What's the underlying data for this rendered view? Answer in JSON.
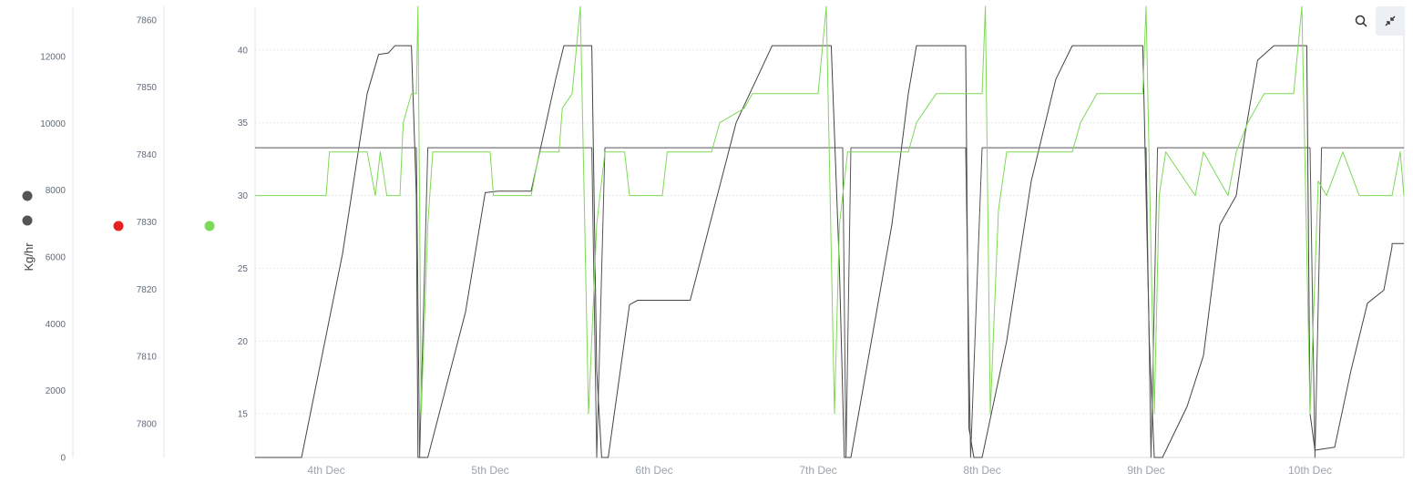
{
  "toolbar": {
    "zoom_icon": "search-icon",
    "collapse_icon": "minimize-icon"
  },
  "chart_data": {
    "type": "line",
    "x_categories": [
      "4th Dec",
      "5th Dec",
      "6th Dec",
      "7th Dec",
      "8th Dec",
      "9th Dec",
      "10th Dec"
    ],
    "axes": [
      {
        "id": "a1",
        "label": "Kg/hr",
        "range": [
          0,
          13500
        ],
        "ticks": [
          0,
          2000,
          4000,
          6000,
          8000,
          10000,
          12000
        ],
        "indicators": [
          {
            "color": "#555555"
          },
          {
            "color": "#555555"
          }
        ]
      },
      {
        "id": "a2",
        "label": "",
        "range": [
          7795,
          7862
        ],
        "ticks": [
          7800,
          7810,
          7820,
          7830,
          7840,
          7850,
          7860
        ],
        "indicators": [
          {
            "color": "#e82020"
          }
        ]
      },
      {
        "id": "a3",
        "label": "",
        "range": [
          12,
          43
        ],
        "ticks": [
          15,
          20,
          25,
          30,
          35,
          40
        ],
        "indicators": [
          {
            "color": "#7ed957"
          }
        ]
      }
    ],
    "grid": true,
    "series": [
      {
        "axis": "a3",
        "color": "#444444",
        "points": [
          [
            3.45,
            12
          ],
          [
            3.85,
            12
          ],
          [
            4.1,
            26
          ],
          [
            4.25,
            37
          ],
          [
            4.32,
            39.7
          ],
          [
            4.38,
            39.8
          ],
          [
            4.42,
            40.3
          ],
          [
            4.45,
            40.3
          ],
          [
            4.52,
            40.3
          ],
          [
            4.55,
            30
          ],
          [
            4.56,
            12
          ],
          [
            4.62,
            12
          ],
          [
            4.85,
            22
          ],
          [
            4.97,
            30.2
          ],
          [
            5.05,
            30.3
          ],
          [
            5.25,
            30.3
          ],
          [
            5.4,
            38
          ],
          [
            5.45,
            40.3
          ],
          [
            5.62,
            40.3
          ],
          [
            5.65,
            18
          ],
          [
            5.68,
            12
          ],
          [
            5.72,
            12
          ],
          [
            5.85,
            22.5
          ],
          [
            5.9,
            22.8
          ],
          [
            6.22,
            22.8
          ],
          [
            6.5,
            35
          ],
          [
            6.72,
            40.3
          ],
          [
            7.08,
            40.3
          ],
          [
            7.13,
            25
          ],
          [
            7.16,
            12
          ],
          [
            7.2,
            12
          ],
          [
            7.45,
            28
          ],
          [
            7.55,
            37
          ],
          [
            7.6,
            40.3
          ],
          [
            7.9,
            40.3
          ],
          [
            7.92,
            14
          ],
          [
            7.95,
            12
          ],
          [
            8,
            12
          ],
          [
            8.15,
            20
          ],
          [
            8.3,
            31
          ],
          [
            8.45,
            38
          ],
          [
            8.55,
            40.3
          ],
          [
            8.98,
            40.3
          ],
          [
            9.02,
            20
          ],
          [
            9.05,
            12
          ],
          [
            9.1,
            12
          ],
          [
            9.25,
            15.5
          ],
          [
            9.35,
            19
          ],
          [
            9.45,
            28
          ],
          [
            9.55,
            30
          ],
          [
            9.6,
            34
          ],
          [
            9.68,
            39.3
          ],
          [
            9.78,
            40.3
          ],
          [
            9.98,
            40.3
          ],
          [
            10,
            15
          ],
          [
            10.03,
            12.5
          ],
          [
            10.15,
            12.7
          ],
          [
            10.25,
            18
          ],
          [
            10.35,
            22.6
          ],
          [
            10.45,
            23.5
          ],
          [
            10.5,
            26.5
          ],
          [
            10.5,
            26.7
          ],
          [
            10.65,
            26.7
          ]
        ]
      },
      {
        "axis": "a2",
        "color": "#555555",
        "points": [
          [
            3.45,
            7841
          ],
          [
            4.55,
            7841
          ],
          [
            4.57,
            7795
          ],
          [
            4.62,
            7841
          ],
          [
            5.62,
            7841
          ],
          [
            5.65,
            7795
          ],
          [
            5.7,
            7841
          ],
          [
            7.15,
            7841
          ],
          [
            7.17,
            7795
          ],
          [
            7.2,
            7841
          ],
          [
            7.9,
            7841
          ],
          [
            7.93,
            7795
          ],
          [
            8,
            7841
          ],
          [
            9.0,
            7841
          ],
          [
            9.03,
            7795
          ],
          [
            9.07,
            7841
          ],
          [
            10.0,
            7841
          ],
          [
            10.03,
            7795
          ],
          [
            10.07,
            7841
          ],
          [
            10.65,
            7841
          ]
        ]
      },
      {
        "axis": "a3",
        "color": "#7ed957",
        "points": [
          [
            3.45,
            30
          ],
          [
            4,
            30
          ],
          [
            4.02,
            33
          ],
          [
            4.25,
            33
          ],
          [
            4.3,
            30
          ],
          [
            4.33,
            33
          ],
          [
            4.37,
            30
          ],
          [
            4.45,
            30
          ],
          [
            4.47,
            35
          ],
          [
            4.52,
            37
          ],
          [
            4.55,
            37
          ],
          [
            4.56,
            43
          ],
          [
            4.58,
            15
          ],
          [
            4.62,
            28
          ],
          [
            4.65,
            33
          ],
          [
            5.0,
            33
          ],
          [
            5.02,
            30
          ],
          [
            5.25,
            30
          ],
          [
            5.3,
            33
          ],
          [
            5.42,
            33
          ],
          [
            5.44,
            36
          ],
          [
            5.5,
            37
          ],
          [
            5.55,
            43
          ],
          [
            5.6,
            15
          ],
          [
            5.65,
            28
          ],
          [
            5.7,
            33
          ],
          [
            5.82,
            33
          ],
          [
            5.85,
            30
          ],
          [
            6.05,
            30
          ],
          [
            6.08,
            33
          ],
          [
            6.35,
            33
          ],
          [
            6.4,
            35
          ],
          [
            6.55,
            36
          ],
          [
            6.6,
            37
          ],
          [
            7.0,
            37
          ],
          [
            7.05,
            43
          ],
          [
            7.1,
            15
          ],
          [
            7.13,
            28
          ],
          [
            7.18,
            33
          ],
          [
            7.55,
            33
          ],
          [
            7.6,
            35
          ],
          [
            7.72,
            37
          ],
          [
            8.0,
            37
          ],
          [
            8.02,
            43
          ],
          [
            8.05,
            15
          ],
          [
            8.1,
            29
          ],
          [
            8.15,
            33
          ],
          [
            8.55,
            33
          ],
          [
            8.6,
            35
          ],
          [
            8.7,
            37
          ],
          [
            8.98,
            37
          ],
          [
            9.0,
            43
          ],
          [
            9.05,
            15
          ],
          [
            9.08,
            30
          ],
          [
            9.12,
            33
          ],
          [
            9.3,
            30
          ],
          [
            9.35,
            33
          ],
          [
            9.5,
            30
          ],
          [
            9.55,
            33
          ],
          [
            9.62,
            35
          ],
          [
            9.72,
            37
          ],
          [
            9.9,
            37
          ],
          [
            9.95,
            43
          ],
          [
            10.0,
            15
          ],
          [
            10.05,
            31
          ],
          [
            10.1,
            30
          ],
          [
            10.2,
            33
          ],
          [
            10.3,
            30
          ],
          [
            10.5,
            30
          ],
          [
            10.55,
            33
          ],
          [
            10.6,
            30
          ],
          [
            10.65,
            30
          ]
        ]
      }
    ]
  }
}
